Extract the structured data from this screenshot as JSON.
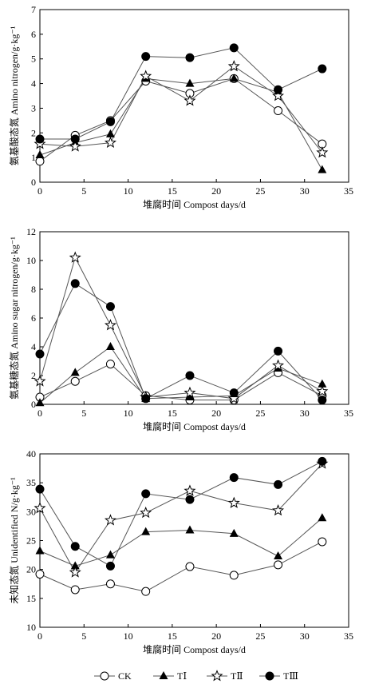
{
  "chart_data": [
    {
      "type": "line",
      "xlabel": "堆腐时间 Compost days/d",
      "ylabel": "氨基酸态氮 Amino nitrogen/g·kg⁻¹",
      "x": [
        0,
        4,
        8,
        12,
        17,
        22,
        27,
        32
      ],
      "xlim": [
        0,
        35
      ],
      "ylim": [
        0,
        7
      ],
      "xticks": [
        0,
        5,
        10,
        15,
        20,
        25,
        30,
        35
      ],
      "yticks": [
        0,
        1,
        2,
        3,
        4,
        5,
        6,
        7
      ],
      "series": [
        {
          "name": "CK",
          "values": [
            0.85,
            1.9,
            2.5,
            4.1,
            3.6,
            4.2,
            2.9,
            1.55
          ]
        },
        {
          "name": "TⅠ",
          "values": [
            1.1,
            1.6,
            1.95,
            4.2,
            4.0,
            4.2,
            3.65,
            0.5
          ]
        },
        {
          "name": "TⅡ",
          "values": [
            1.55,
            1.45,
            1.6,
            4.3,
            3.3,
            4.7,
            3.5,
            1.2
          ]
        },
        {
          "name": "TⅢ",
          "values": [
            1.75,
            1.75,
            2.45,
            5.1,
            5.05,
            5.45,
            3.75,
            4.6
          ]
        }
      ]
    },
    {
      "type": "line",
      "xlabel": "堆腐时间 Compost days/d",
      "ylabel": "氨基糖态氮 Amino sugar nitrogen/g·kg⁻¹",
      "x": [
        0,
        4,
        8,
        12,
        17,
        22,
        27,
        32
      ],
      "xlim": [
        0,
        35
      ],
      "ylim": [
        0,
        12
      ],
      "xticks": [
        0,
        5,
        10,
        15,
        20,
        25,
        30,
        35
      ],
      "yticks": [
        0,
        2,
        4,
        6,
        8,
        10,
        12
      ],
      "series": [
        {
          "name": "CK",
          "values": [
            0.5,
            1.6,
            2.8,
            0.6,
            0.3,
            0.3,
            2.2,
            0.6
          ]
        },
        {
          "name": "TⅠ",
          "values": [
            0.1,
            2.2,
            4.0,
            0.4,
            0.5,
            0.6,
            2.5,
            1.4
          ]
        },
        {
          "name": "TⅡ",
          "values": [
            1.6,
            10.2,
            5.5,
            0.5,
            0.8,
            0.4,
            2.7,
            0.9
          ]
        },
        {
          "name": "TⅢ",
          "values": [
            3.5,
            8.4,
            6.8,
            0.4,
            2.0,
            0.8,
            3.7,
            0.3
          ]
        }
      ]
    },
    {
      "type": "line",
      "xlabel": "堆腐时间 Compost days/d",
      "ylabel": "未知态氮 Unidentified N/g·kg⁻¹",
      "x": [
        0,
        4,
        8,
        12,
        17,
        22,
        27,
        32
      ],
      "xlim": [
        0,
        35
      ],
      "ylim": [
        10,
        40
      ],
      "xticks": [
        0,
        5,
        10,
        15,
        20,
        25,
        30,
        35
      ],
      "yticks": [
        10,
        15,
        20,
        25,
        30,
        35,
        40
      ],
      "series": [
        {
          "name": "CK",
          "values": [
            19.2,
            16.5,
            17.5,
            16.2,
            20.5,
            19.0,
            20.8,
            24.8
          ]
        },
        {
          "name": "TⅠ",
          "values": [
            23.2,
            20.6,
            22.5,
            26.5,
            26.8,
            26.2,
            22.3,
            28.9
          ]
        },
        {
          "name": "TⅡ",
          "values": [
            30.6,
            19.5,
            28.5,
            29.8,
            33.6,
            31.5,
            30.2,
            38.3
          ]
        },
        {
          "name": "TⅢ",
          "values": [
            33.9,
            24.0,
            20.6,
            33.1,
            32.1,
            35.9,
            34.7,
            38.7
          ]
        }
      ]
    }
  ],
  "legend": {
    "items": [
      {
        "label": "CK",
        "marker": "circle-open"
      },
      {
        "label": "TⅠ",
        "marker": "triangle-filled"
      },
      {
        "label": "TⅡ",
        "marker": "star-open"
      },
      {
        "label": "TⅢ",
        "marker": "circle-filled"
      }
    ]
  }
}
